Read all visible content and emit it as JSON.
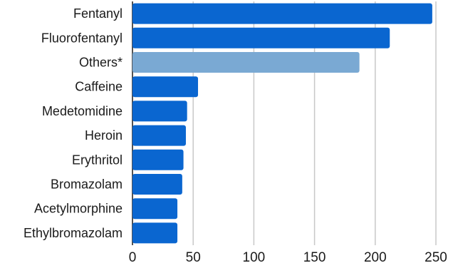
{
  "chart_data": {
    "type": "bar",
    "orientation": "horizontal",
    "categories": [
      "Fentanyl",
      "Fluorofentanyl",
      "Others*",
      "Caffeine",
      "Medetomidine",
      "Heroin",
      "Erythritol",
      "Bromazolam",
      "Acetylmorphine",
      "Ethylbromazolam"
    ],
    "values": [
      247,
      212,
      187,
      54,
      45,
      44,
      42,
      41,
      37,
      37
    ],
    "highlight": [
      "Others*"
    ],
    "title": "",
    "xlabel": "",
    "ylabel": "",
    "xlim": [
      0,
      250
    ],
    "xticks": [
      0,
      50,
      100,
      150,
      200,
      250
    ],
    "grid": "vertical",
    "legend": "none"
  },
  "colors": {
    "bar": "#0a66d0",
    "highlight_bar": "#7aa9d3",
    "grid": "#c8c8c8",
    "text": "#1a1a1a"
  }
}
